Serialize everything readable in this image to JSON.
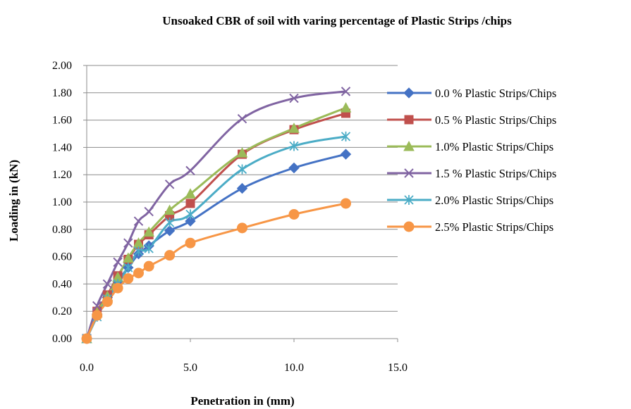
{
  "chart_data": {
    "type": "line",
    "title": "Unsoaked CBR of soil with  varing percentage of Plastic Strips /chips",
    "xlabel": "Penetration in (mm)",
    "ylabel": "Loading in (kN)",
    "xlim": [
      0,
      15
    ],
    "ylim": [
      0,
      2
    ],
    "xticks": [
      "0.0",
      "5.0",
      "10.0",
      "15.0"
    ],
    "yticks": [
      "0.00",
      "0.20",
      "0.40",
      "0.60",
      "0.80",
      "1.00",
      "1.20",
      "1.40",
      "1.60",
      "1.80",
      "2.00"
    ],
    "grid": "horizontal",
    "legend_position": "right",
    "series": [
      {
        "name": "0.0 % Plastic Strips/Chips",
        "color": "#4472C4",
        "marker": "diamond",
        "x": [
          0,
          0.5,
          1.0,
          1.5,
          2.0,
          2.5,
          3.0,
          4.0,
          5.0,
          7.5,
          10.0,
          12.5
        ],
        "y": [
          0,
          0.18,
          0.3,
          0.42,
          0.52,
          0.62,
          0.68,
          0.79,
          0.86,
          1.1,
          1.25,
          1.35
        ]
      },
      {
        "name": "0.5 % Plastic Strips/Chips",
        "color": "#C0504D",
        "marker": "square",
        "x": [
          0,
          0.5,
          1.0,
          1.5,
          2.0,
          2.5,
          3.0,
          4.0,
          5.0,
          7.5,
          10.0,
          12.5
        ],
        "y": [
          0,
          0.2,
          0.32,
          0.46,
          0.58,
          0.69,
          0.76,
          0.9,
          0.99,
          1.35,
          1.53,
          1.65
        ]
      },
      {
        "name": "1.0% Plastic Strips/Chips",
        "color": "#9BBB59",
        "marker": "triangle",
        "x": [
          0,
          0.5,
          1.0,
          1.5,
          2.0,
          2.5,
          3.0,
          4.0,
          5.0,
          7.5,
          10.0,
          12.5
        ],
        "y": [
          0,
          0.19,
          0.31,
          0.45,
          0.59,
          0.7,
          0.78,
          0.94,
          1.06,
          1.36,
          1.54,
          1.69
        ]
      },
      {
        "name": "1.5 % Plastic Strips/Chips",
        "color": "#8064A2",
        "marker": "x",
        "x": [
          0,
          0.5,
          1.0,
          1.5,
          2.0,
          2.5,
          3.0,
          4.0,
          5.0,
          7.5,
          10.0,
          12.5
        ],
        "y": [
          0,
          0.24,
          0.4,
          0.56,
          0.7,
          0.86,
          0.93,
          1.13,
          1.23,
          1.61,
          1.76,
          1.81
        ]
      },
      {
        "name": "2.0% Plastic Strips/Chips",
        "color": "#4BACC6",
        "marker": "asterisk",
        "x": [
          0,
          0.5,
          1.0,
          1.5,
          2.0,
          2.5,
          3.0,
          4.0,
          5.0,
          7.5,
          10.0,
          12.5
        ],
        "y": [
          0,
          0.16,
          0.29,
          0.4,
          0.52,
          0.64,
          0.66,
          0.85,
          0.91,
          1.24,
          1.41,
          1.48
        ]
      },
      {
        "name": "2.5% Plastic Strips/Chips",
        "color": "#F79646",
        "marker": "circle",
        "x": [
          0,
          0.5,
          1.0,
          1.5,
          2.0,
          2.5,
          3.0,
          4.0,
          5.0,
          7.5,
          10.0,
          12.5
        ],
        "y": [
          0,
          0.17,
          0.27,
          0.37,
          0.44,
          0.48,
          0.53,
          0.61,
          0.7,
          0.81,
          0.91,
          0.99
        ]
      }
    ]
  }
}
